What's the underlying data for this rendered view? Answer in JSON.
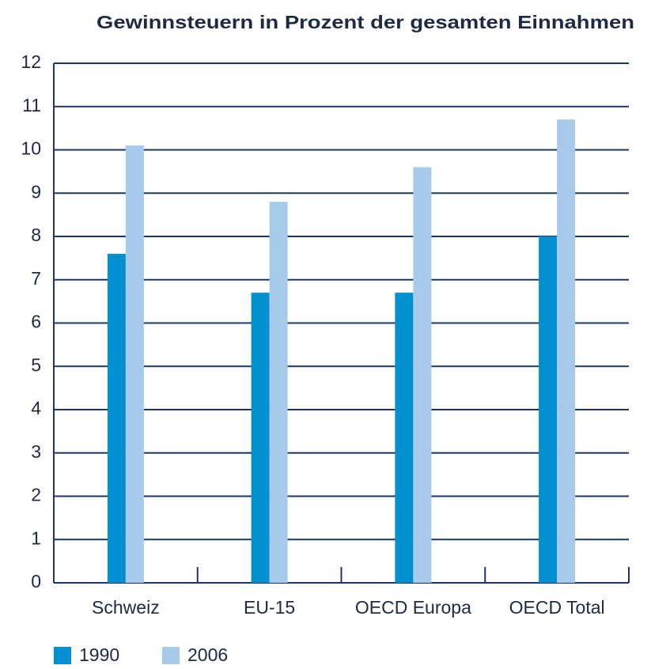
{
  "chart_data": {
    "type": "bar",
    "title": "Gewinnsteuern in Prozent der gesamten Einnahmen",
    "categories": [
      "Schweiz",
      "EU-15",
      "OECD Europa",
      "OECD Total"
    ],
    "series": [
      {
        "name": "1990",
        "color": "#0090d0",
        "values": [
          7.6,
          6.7,
          6.7,
          8.0
        ]
      },
      {
        "name": "2006",
        "color": "#a6cbea",
        "values": [
          10.1,
          8.8,
          9.6,
          10.7
        ]
      }
    ],
    "ylim": [
      0,
      12
    ],
    "yticks": [
      0,
      1,
      2,
      3,
      4,
      5,
      6,
      7,
      8,
      9,
      10,
      11,
      12
    ],
    "grid": true
  }
}
